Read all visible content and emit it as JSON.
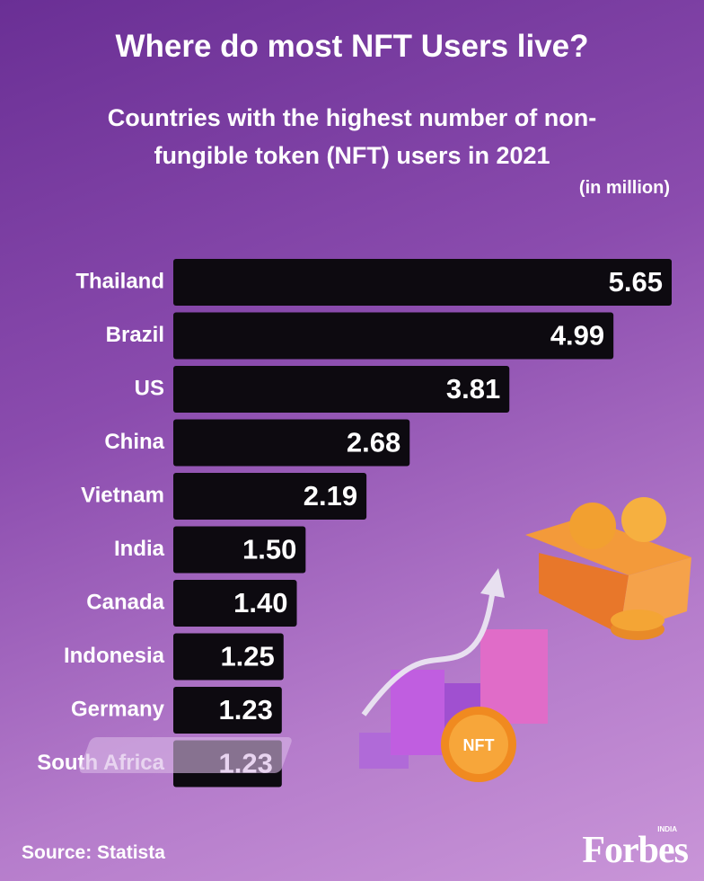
{
  "chart_data": {
    "type": "hbar",
    "title": "Where do most NFT Users live?",
    "subtitle": "Countries with the highest number of non-fungible token (NFT) users in 2021",
    "unit_label": "(in million)",
    "categories": [
      "Thailand",
      "Brazil",
      "US",
      "China",
      "Vietnam",
      "India",
      "Canada",
      "Indonesia",
      "Germany",
      "South Africa"
    ],
    "values": [
      5.65,
      4.99,
      3.81,
      2.68,
      2.19,
      1.5,
      1.4,
      1.25,
      1.23,
      1.23
    ],
    "value_labels": [
      "5.65",
      "4.99",
      "3.81",
      "2.68",
      "2.19",
      "1.50",
      "1.40",
      "1.25",
      "1.23",
      "1.23"
    ],
    "color": "#0d0a10",
    "xlim": [
      0,
      5.65
    ],
    "source": "Source: Statista"
  },
  "brand": {
    "logo": "Forbes",
    "edition": "INDIA"
  },
  "illustration": {
    "coin_label": "NFT"
  }
}
